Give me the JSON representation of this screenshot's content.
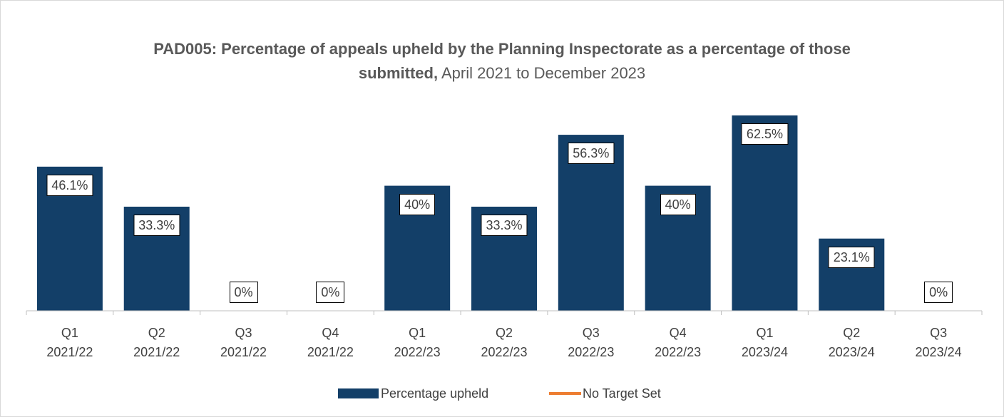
{
  "chart_data": {
    "type": "bar",
    "title": "PAD005: Percentage of appeals upheld by the Planning Inspectorate as a percentage of those submitted,",
    "subtitle": "April 2021 to December 2023",
    "categories": [
      "Q1 2021/22",
      "Q2 2021/22",
      "Q3 2021/22",
      "Q4 2021/22",
      "Q1 2022/23",
      "Q2 2022/23",
      "Q3 2022/23",
      "Q4 2022/23",
      "Q1 2023/24",
      "Q2 2023/24",
      "Q3 2023/24"
    ],
    "series": [
      {
        "name": "Percentage upheld",
        "color": "#133f68",
        "values": [
          46.1,
          33.3,
          0,
          0,
          40,
          33.3,
          56.3,
          40,
          62.5,
          23.1,
          0
        ],
        "value_labels": [
          "46.1%",
          "33.3%",
          "0%",
          "0%",
          "40%",
          "33.3%",
          "56.3%",
          "40%",
          "62.5%",
          "23.1%",
          "0%"
        ]
      },
      {
        "name": "No Target Set",
        "color": "#ed7d31",
        "values": [
          null,
          null,
          null,
          null,
          null,
          null,
          null,
          null,
          null,
          null,
          null
        ]
      }
    ],
    "ylim": [
      0,
      70
    ]
  }
}
